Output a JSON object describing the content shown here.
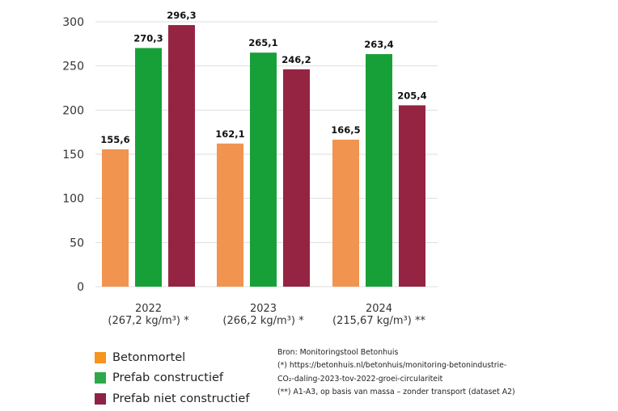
{
  "chart_data": {
    "type": "bar",
    "categories": [
      "2022",
      "2023",
      "2024"
    ],
    "category_sublabels": [
      "(267,2 kg/m³) *",
      "(266,2 kg/m³) *",
      "(215,67 kg/m³) **"
    ],
    "series": [
      {
        "name": "Betonmortel",
        "values": [
          155.6,
          162.1,
          166.5
        ],
        "labels": [
          "155,6",
          "162,1",
          "166,5"
        ],
        "color": "#F0944F",
        "legend_color": "#F7941D"
      },
      {
        "name": "Prefab constructief",
        "values": [
          270.3,
          265.1,
          263.4
        ],
        "labels": [
          "270,3",
          "265,1",
          "263,4"
        ],
        "color": "#18A038",
        "legend_color": "#2EA84A"
      },
      {
        "name": "Prefab niet constructief",
        "values": [
          296.3,
          246.2,
          205.4
        ],
        "labels": [
          "296,3",
          "246,2",
          "205,4"
        ],
        "color": "#952443",
        "legend_color": "#8E2246"
      }
    ],
    "yticks": [
      0,
      50,
      100,
      150,
      200,
      250,
      300
    ],
    "ylim": [
      0,
      300
    ],
    "grid": true,
    "legend_placement": "bottom-left"
  },
  "footnotes": [
    "Bron: Monitoringstool Betonhuis",
    "(*) https://betonhuis.nl/betonhuis/monitoring-betonindustrie-",
    "CO₂-daling-2023-tov-2022-groei-circulariteit",
    "(**) A1-A3, op basis van massa – zonder transport (dataset A2)"
  ]
}
